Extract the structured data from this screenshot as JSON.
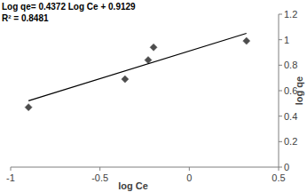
{
  "chart_data": {
    "type": "scatter",
    "annotations": [
      "Log qe= 0.4372 Log Ce + 0.9129",
      "R² = 0.8481"
    ],
    "x_label": "log Ce",
    "y_label": "log qe",
    "xlim": [
      -1,
      0.5
    ],
    "ylim": [
      0,
      1.2
    ],
    "xticks": [
      -1,
      -0.5,
      0,
      0.5
    ],
    "yticks": [
      0,
      0.2,
      0.4,
      0.6,
      0.8,
      1,
      1.2
    ],
    "series": [
      {
        "type": "scatter",
        "marker": "diamond",
        "color": "#4d4d4d",
        "x": [
          -0.9,
          -0.36,
          -0.23,
          -0.2,
          0.32
        ],
        "values": [
          0.47,
          0.69,
          0.84,
          0.94,
          0.99
        ]
      },
      {
        "type": "line",
        "line_style": "solid",
        "color": "#000000",
        "x": [
          -0.9,
          0.32
        ],
        "values": [
          0.52,
          1.05
        ]
      }
    ]
  }
}
